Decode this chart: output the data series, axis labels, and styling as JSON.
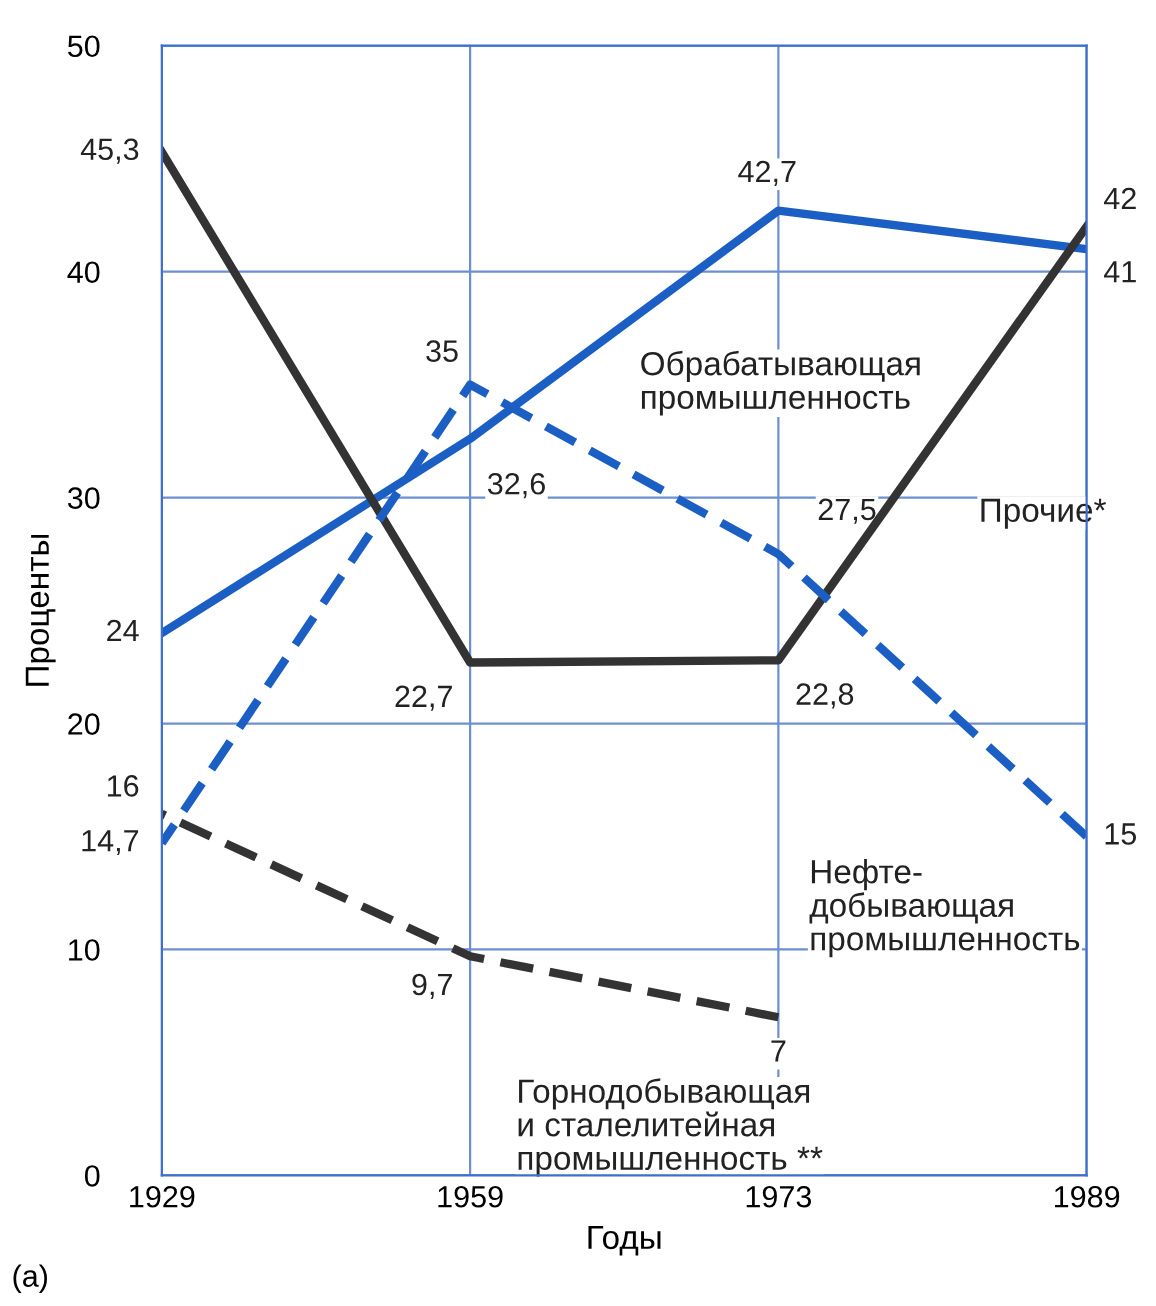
{
  "chart_data": {
    "type": "line",
    "xlabel": "Годы",
    "ylabel": "Проценты",
    "categories": [
      "1929",
      "1959",
      "1973",
      "1989"
    ],
    "ylim": [
      0,
      50
    ],
    "yticks": [
      0,
      10,
      20,
      30,
      40,
      50
    ],
    "grid": true,
    "legend": false,
    "marker": "none",
    "annotations": [
      "(a)"
    ],
    "series": [
      {
        "name": "Обрабатывающая\nпромышленность",
        "color": "#1b5ec4",
        "line_style": "solid",
        "values": [
          24,
          32.6,
          42.7,
          41
        ],
        "value_labels": [
          "24",
          "32,6",
          "42,7",
          "41"
        ]
      },
      {
        "name": "Прочие*",
        "color": "#333333",
        "line_style": "solid",
        "values": [
          45.3,
          22.7,
          22.8,
          42
        ],
        "value_labels": [
          "45,3",
          "22,7",
          "22,8",
          "42"
        ]
      },
      {
        "name": "Нефте-\nдобывающая\nпромышленность",
        "color": "#1b5ec4",
        "line_style": "dashed",
        "values": [
          14.7,
          35,
          27.5,
          15
        ],
        "value_labels": [
          "14,7",
          "35",
          "27,5",
          "15"
        ]
      },
      {
        "name": "Горнодобывающая\nи сталелитейная\nпромышленность **",
        "color": "#333333",
        "line_style": "dashed",
        "values": [
          16,
          9.7,
          7,
          null
        ],
        "value_labels": [
          "16",
          "9,7",
          "7",
          null
        ]
      }
    ]
  }
}
